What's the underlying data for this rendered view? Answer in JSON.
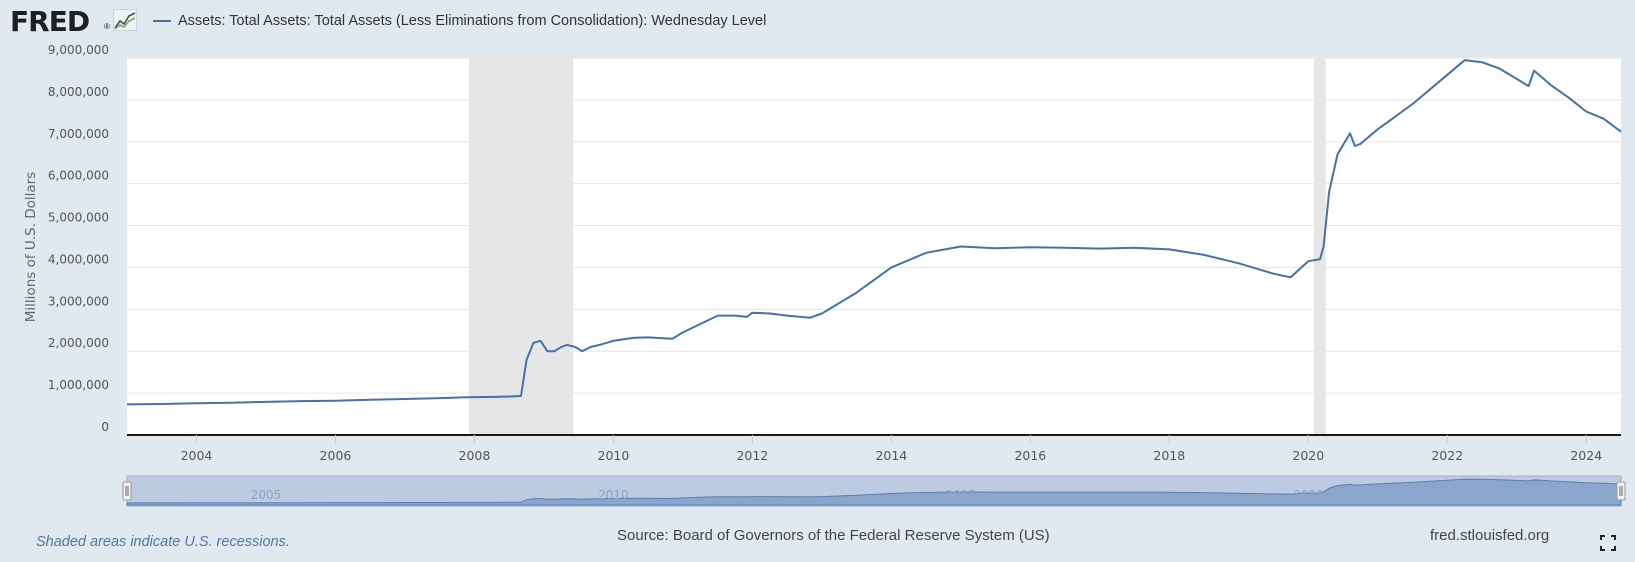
{
  "header": {
    "logo": "FRED",
    "logo_reg": "®",
    "legend_label": "Assets: Total Assets: Total Assets (Less Eliminations from Consolidation): Wednesday Level",
    "series_color": "#4572a7",
    "logo_icon": "line-chart-icon"
  },
  "footer": {
    "note": "Shaded areas indicate U.S. recessions.",
    "source": "Source: Board of Governors of the Federal Reserve System (US)",
    "site": "fred.stlouisfed.org",
    "fullscreen_icon": "fullscreen-icon"
  },
  "chart_data": {
    "type": "line",
    "title": "",
    "xlabel": "",
    "ylabel": "Millions of U.S. Dollars",
    "xlim": [
      2003.0,
      2024.5
    ],
    "ylim": [
      0,
      9000000
    ],
    "grid": true,
    "y_ticks": [
      {
        "value": 0,
        "label": "0"
      },
      {
        "value": 1000000,
        "label": "1,000,000"
      },
      {
        "value": 2000000,
        "label": "2,000,000"
      },
      {
        "value": 3000000,
        "label": "3,000,000"
      },
      {
        "value": 4000000,
        "label": "4,000,000"
      },
      {
        "value": 5000000,
        "label": "5,000,000"
      },
      {
        "value": 6000000,
        "label": "6,000,000"
      },
      {
        "value": 7000000,
        "label": "7,000,000"
      },
      {
        "value": 8000000,
        "label": "8,000,000"
      },
      {
        "value": 9000000,
        "label": "9,000,000"
      }
    ],
    "x_ticks": [
      {
        "value": 2004,
        "label": "2004"
      },
      {
        "value": 2006,
        "label": "2006"
      },
      {
        "value": 2008,
        "label": "2008"
      },
      {
        "value": 2010,
        "label": "2010"
      },
      {
        "value": 2012,
        "label": "2012"
      },
      {
        "value": 2014,
        "label": "2014"
      },
      {
        "value": 2016,
        "label": "2016"
      },
      {
        "value": 2018,
        "label": "2018"
      },
      {
        "value": 2020,
        "label": "2020"
      },
      {
        "value": 2022,
        "label": "2022"
      },
      {
        "value": 2024,
        "label": "2024"
      }
    ],
    "recessions": [
      {
        "start": 2007.92,
        "end": 2009.42
      },
      {
        "start": 2020.08,
        "end": 2020.25
      }
    ],
    "navigator": {
      "ylim": [
        0,
        9000000
      ],
      "labels": [
        {
          "value": 2005,
          "label": "2005"
        },
        {
          "value": 2010,
          "label": "2010"
        },
        {
          "value": 2015,
          "label": "2015"
        },
        {
          "value": 2020,
          "label": "2020"
        }
      ]
    },
    "series": [
      {
        "color": "#4572a7",
        "x": [
          2003.0,
          2003.5,
          2004.0,
          2004.5,
          2005.0,
          2005.5,
          2006.0,
          2006.5,
          2007.0,
          2007.5,
          2007.9,
          2008.3,
          2008.5,
          2008.67,
          2008.75,
          2008.85,
          2008.95,
          2009.05,
          2009.15,
          2009.25,
          2009.33,
          2009.45,
          2009.55,
          2009.67,
          2009.8,
          2010.0,
          2010.3,
          2010.5,
          2010.85,
          2011.0,
          2011.25,
          2011.5,
          2011.75,
          2011.92,
          2012.0,
          2012.25,
          2012.5,
          2012.83,
          2013.0,
          2013.5,
          2014.0,
          2014.5,
          2014.83,
          2015.0,
          2015.5,
          2016.0,
          2016.5,
          2017.0,
          2017.5,
          2018.0,
          2018.5,
          2019.0,
          2019.5,
          2019.7,
          2019.75,
          2019.9,
          2020.0,
          2020.17,
          2020.22,
          2020.3,
          2020.42,
          2020.6,
          2020.67,
          2020.75,
          2021.0,
          2021.5,
          2022.0,
          2022.25,
          2022.5,
          2022.75,
          2023.0,
          2023.17,
          2023.25,
          2023.5,
          2023.75,
          2024.0,
          2024.25,
          2024.5
        ],
        "values": [
          730000,
          740000,
          760000,
          770000,
          790000,
          810000,
          820000,
          840000,
          860000,
          880000,
          900000,
          910000,
          920000,
          930000,
          1800000,
          2200000,
          2250000,
          2000000,
          2000000,
          2100000,
          2150000,
          2100000,
          2000000,
          2100000,
          2150000,
          2250000,
          2320000,
          2330000,
          2300000,
          2450000,
          2650000,
          2850000,
          2850000,
          2820000,
          2920000,
          2900000,
          2850000,
          2800000,
          2900000,
          3400000,
          4000000,
          4350000,
          4450000,
          4500000,
          4460000,
          4480000,
          4470000,
          4450000,
          4470000,
          4430000,
          4300000,
          4100000,
          3850000,
          3780000,
          3770000,
          4000000,
          4150000,
          4200000,
          4500000,
          5800000,
          6700000,
          7200000,
          6900000,
          6950000,
          7300000,
          7900000,
          8600000,
          8950000,
          8900000,
          8750000,
          8500000,
          8330000,
          8700000,
          8340000,
          8050000,
          7720000,
          7550000,
          7240000
        ]
      }
    ]
  }
}
